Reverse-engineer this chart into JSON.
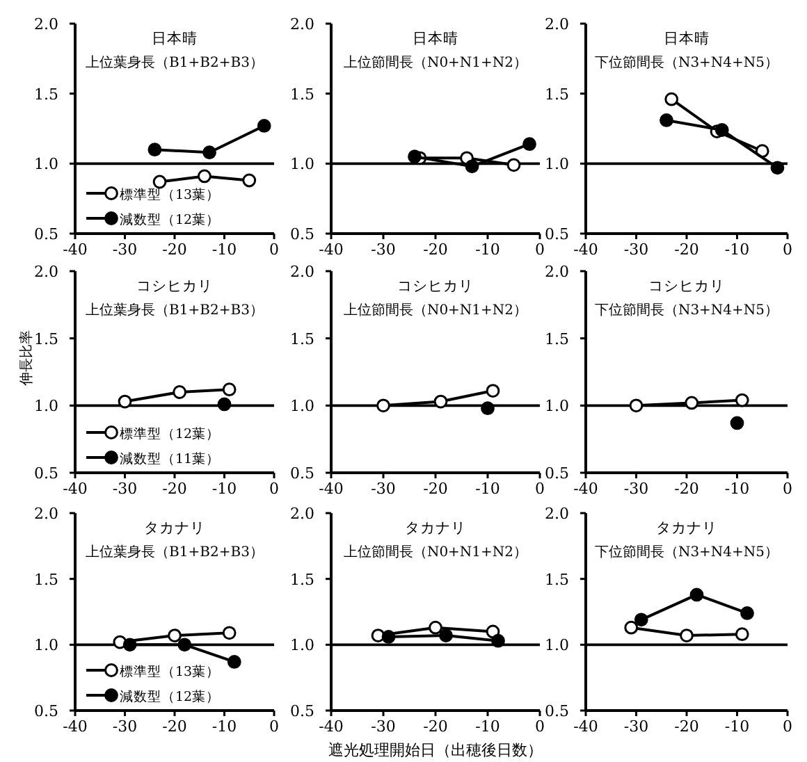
{
  "chart_data": [
    {
      "type": "line",
      "title": "日本晴",
      "subtitle": "上位葉身長（B1+B2+B3）",
      "xlim": [
        -40,
        0
      ],
      "ylim": [
        0.5,
        2.0
      ],
      "xticks": [
        -40,
        -30,
        -20,
        -10,
        0
      ],
      "yticks": [
        {
          "value": 0.5,
          "label": "0.5"
        },
        {
          "value": 1.0,
          "label": "1.0"
        },
        {
          "value": 1.5,
          "label": "1.5"
        },
        {
          "value": 2.0,
          "label": "2.0"
        }
      ],
      "ref_lines": [
        {
          "axis": "y",
          "value": 1.0
        }
      ],
      "marker": "circle",
      "legend": "bottom left",
      "series": [
        {
          "name": "標準型（13葉）",
          "color": "#000000",
          "x": [
            -23,
            -14,
            -5
          ],
          "values": [
            0.87,
            0.91,
            0.88
          ]
        },
        {
          "name": "減数型（12葉）",
          "color": "#000000",
          "x": [
            -24,
            -13,
            -2
          ],
          "values": [
            1.1,
            1.08,
            1.27
          ]
        }
      ]
    },
    {
      "type": "line",
      "title": "日本晴",
      "subtitle": "上位節間長（N0+N1+N2）",
      "xlim": [
        -40,
        0
      ],
      "ylim": [
        0.5,
        2.0
      ],
      "xticks": [
        -40,
        -30,
        -20,
        -10,
        0
      ],
      "yticks": [
        {
          "value": 0.5,
          "label": "0.5"
        },
        {
          "value": 1.0,
          "label": "1.0"
        },
        {
          "value": 1.5,
          "label": "1.5"
        },
        {
          "value": 2.0,
          "label": "2.0"
        }
      ],
      "ref_lines": [
        {
          "axis": "y",
          "value": 1.0
        }
      ],
      "marker": "circle",
      "series": [
        {
          "color": "#000000",
          "x": [
            -23,
            -14,
            -5
          ],
          "values": [
            1.04,
            1.04,
            0.99
          ]
        },
        {
          "color": "#000000",
          "x": [
            -24,
            -13,
            -2
          ],
          "values": [
            1.05,
            0.98,
            1.14
          ]
        }
      ]
    },
    {
      "type": "line",
      "title": "日本晴",
      "subtitle": "下位節間長（N3+N4+N5）",
      "xlim": [
        -40,
        0
      ],
      "ylim": [
        0.5,
        2.0
      ],
      "xticks": [
        -40,
        -30,
        -20,
        -10,
        0
      ],
      "yticks": [
        {
          "value": 0.5,
          "label": "0.5"
        },
        {
          "value": 1.0,
          "label": "1.0"
        },
        {
          "value": 1.5,
          "label": "1.5"
        },
        {
          "value": 2.0,
          "label": "2.0"
        }
      ],
      "ref_lines": [
        {
          "axis": "y",
          "value": 1.0
        }
      ],
      "marker": "circle",
      "series": [
        {
          "color": "#000000",
          "x": [
            -23,
            -14,
            -5
          ],
          "values": [
            1.46,
            1.23,
            1.09
          ]
        },
        {
          "color": "#000000",
          "x": [
            -24,
            -13,
            -2
          ],
          "values": [
            1.31,
            1.24,
            0.97
          ]
        }
      ]
    },
    {
      "type": "line",
      "title": "コシヒカリ",
      "subtitle": "上位葉身長（B1+B2+B3）",
      "ylabel": "伸長比率",
      "xlim": [
        -40,
        0
      ],
      "ylim": [
        0.5,
        2.0
      ],
      "xticks": [
        -40,
        -30,
        -20,
        -10,
        0
      ],
      "yticks": [
        {
          "value": 0.5,
          "label": "0.5"
        },
        {
          "value": 1.0,
          "label": "1.0"
        },
        {
          "value": 1.5,
          "label": "1.5"
        },
        {
          "value": 2.0,
          "label": "2.0"
        }
      ],
      "ref_lines": [
        {
          "axis": "y",
          "value": 1.0
        }
      ],
      "marker": "circle",
      "legend": "bottom left",
      "series": [
        {
          "name": "標準型（12葉）",
          "color": "#000000",
          "x": [
            -30,
            -19,
            -9
          ],
          "values": [
            1.03,
            1.1,
            1.12
          ]
        },
        {
          "name": "減数型（11葉）",
          "color": "#000000",
          "x": [
            -10
          ],
          "values": [
            1.01
          ]
        }
      ]
    },
    {
      "type": "line",
      "title": "コシヒカリ",
      "subtitle": "上位節間長（N0+N1+N2）",
      "xlim": [
        -40,
        0
      ],
      "ylim": [
        0.5,
        2.0
      ],
      "xticks": [
        -40,
        -30,
        -20,
        -10,
        0
      ],
      "yticks": [
        {
          "value": 0.5,
          "label": "0.5"
        },
        {
          "value": 1.0,
          "label": "1.0"
        },
        {
          "value": 1.5,
          "label": "1.5"
        },
        {
          "value": 2.0,
          "label": "2.0"
        }
      ],
      "ref_lines": [
        {
          "axis": "y",
          "value": 1.0
        }
      ],
      "marker": "circle",
      "series": [
        {
          "color": "#000000",
          "x": [
            -30,
            -19,
            -9
          ],
          "values": [
            1.0,
            1.03,
            1.11
          ]
        },
        {
          "color": "#000000",
          "x": [
            -10
          ],
          "values": [
            0.98
          ]
        }
      ]
    },
    {
      "type": "line",
      "title": "コシヒカリ",
      "subtitle": "下位節間長（N3+N4+N5）",
      "xlim": [
        -40,
        0
      ],
      "ylim": [
        0.5,
        2.0
      ],
      "xticks": [
        -40,
        -30,
        -20,
        -10,
        0
      ],
      "yticks": [
        {
          "value": 0.5,
          "label": "0.5"
        },
        {
          "value": 1.0,
          "label": "1.0"
        },
        {
          "value": 1.5,
          "label": "1.5"
        },
        {
          "value": 2.0,
          "label": "2.0"
        }
      ],
      "ref_lines": [
        {
          "axis": "y",
          "value": 1.0
        }
      ],
      "marker": "circle",
      "series": [
        {
          "color": "#000000",
          "x": [
            -30,
            -19,
            -9
          ],
          "values": [
            1.0,
            1.02,
            1.04
          ]
        },
        {
          "color": "#000000",
          "x": [
            -10
          ],
          "values": [
            0.87
          ]
        }
      ]
    },
    {
      "type": "line",
      "title": "タカナリ",
      "subtitle": "上位葉身長（B1+B2+B3）",
      "xlim": [
        -40,
        0
      ],
      "ylim": [
        0.5,
        2.0
      ],
      "xticks": [
        -40,
        -30,
        -20,
        -10,
        0
      ],
      "yticks": [
        {
          "value": 0.5,
          "label": "0.5"
        },
        {
          "value": 1.0,
          "label": "1.0"
        },
        {
          "value": 1.5,
          "label": "1.5"
        },
        {
          "value": 2.0,
          "label": "2.0"
        }
      ],
      "ref_lines": [
        {
          "axis": "y",
          "value": 1.0
        }
      ],
      "marker": "circle",
      "legend": "bottom left",
      "series": [
        {
          "name": "標準型（13葉）",
          "color": "#000000",
          "x": [
            -31,
            -20,
            -9
          ],
          "values": [
            1.02,
            1.07,
            1.09
          ]
        },
        {
          "name": "減数型（12葉）",
          "color": "#000000",
          "x": [
            -29,
            -18,
            -8
          ],
          "values": [
            1.0,
            1.0,
            0.87
          ]
        }
      ]
    },
    {
      "type": "line",
      "title": "タカナリ",
      "subtitle": "上位節間長（N0+N1+N2）",
      "xlabel": "遮光処理開始日（出穂後日数）",
      "xlim": [
        -40,
        0
      ],
      "ylim": [
        0.5,
        2.0
      ],
      "xticks": [
        -40,
        -30,
        -20,
        -10,
        0
      ],
      "yticks": [
        {
          "value": 0.5,
          "label": "0.5"
        },
        {
          "value": 1.0,
          "label": "1.0"
        },
        {
          "value": 1.5,
          "label": "1.5"
        },
        {
          "value": 2.0,
          "label": "2.0"
        }
      ],
      "ref_lines": [
        {
          "axis": "y",
          "value": 1.0
        }
      ],
      "marker": "circle",
      "series": [
        {
          "color": "#000000",
          "x": [
            -31,
            -20,
            -9
          ],
          "values": [
            1.07,
            1.13,
            1.1
          ]
        },
        {
          "color": "#000000",
          "x": [
            -29,
            -18,
            -8
          ],
          "values": [
            1.06,
            1.07,
            1.03
          ]
        }
      ]
    },
    {
      "type": "line",
      "title": "タカナリ",
      "subtitle": "下位節間長（N3+N4+N5）",
      "xlim": [
        -40,
        0
      ],
      "ylim": [
        0.5,
        2.0
      ],
      "xticks": [
        -40,
        -30,
        -20,
        -10,
        0
      ],
      "yticks": [
        {
          "value": 0.5,
          "label": "0.5"
        },
        {
          "value": 1.0,
          "label": "1.0"
        },
        {
          "value": 1.5,
          "label": "1.5"
        },
        {
          "value": 2.0,
          "label": "2.0"
        }
      ],
      "ref_lines": [
        {
          "axis": "y",
          "value": 1.0
        }
      ],
      "marker": "circle",
      "series": [
        {
          "color": "#000000",
          "x": [
            -31,
            -20,
            -9
          ],
          "values": [
            1.13,
            1.07,
            1.08
          ]
        },
        {
          "color": "#000000",
          "x": [
            -29,
            -18,
            -8
          ],
          "values": [
            1.19,
            1.38,
            1.24
          ]
        }
      ]
    }
  ]
}
